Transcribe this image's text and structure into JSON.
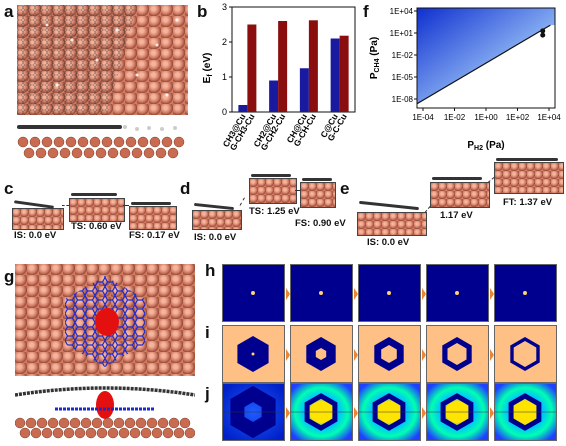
{
  "panels": {
    "a": "a",
    "b": "b",
    "c": "c",
    "d": "d",
    "e": "e",
    "f": "f",
    "g": "g",
    "h": "h",
    "i": "i",
    "j": "j"
  },
  "b": {
    "ylabel": "E",
    "ylabel_sub": "f",
    "ylabel_unit": " (eV)",
    "yticks": [
      "0",
      "1",
      "2",
      "3"
    ]
  },
  "f": {
    "ylabel": "P",
    "ylabel_sub": "CH4",
    "ylabel_unit": " (Pa)",
    "xlabel": "P",
    "xlabel_sub": "H2",
    "xlabel_unit": " (Pa)",
    "yticks": [
      "1E+04",
      "1E+01",
      "1E-02",
      "1E-05",
      "1E-08"
    ],
    "xticks": [
      "1E-04",
      "1E-02",
      "1E+00",
      "1E+02",
      "1E+04"
    ]
  },
  "states": {
    "c_is": "IS: 0.0 eV",
    "c_ts": "TS: 0.60 eV",
    "c_fs": "FS: 0.17 eV",
    "d_is": "IS: 0.0 eV",
    "d_ts": "TS: 1.25 eV",
    "d_fs": "FS: 0.90 eV",
    "e_is": "IS: 0.0 eV",
    "e_mid": "1.17 eV",
    "e_ft": "FT: 1.37 eV"
  },
  "chart_data": {
    "type": "bar",
    "categories": [
      "CH3@Cu",
      "G-CH3-Cu",
      "CH2@Cu",
      "G-CH2-Cu",
      "CH@Cu",
      "G-CH-Cu",
      "C@Cu",
      "G-C-Cu"
    ],
    "values": [
      0.2,
      2.5,
      0.9,
      2.6,
      1.25,
      2.62,
      2.1,
      2.18
    ],
    "colors": [
      "#1a1aa0",
      "#8b0e0e",
      "#1a1aa0",
      "#8b0e0e",
      "#1a1aa0",
      "#8b0e0e",
      "#1a1aa0",
      "#8b0e0e"
    ],
    "ylim": [
      0,
      3
    ],
    "xlabel": "",
    "ylabel": "Ef (eV)"
  },
  "f_chart": {
    "type": "line",
    "x_log_range": [
      -4,
      5
    ],
    "y_log_range": [
      -10,
      4
    ],
    "line": [
      [
        -4,
        -9.4
      ],
      [
        4.7,
        1.6
      ]
    ],
    "points": [
      [
        4.2,
        0.8
      ],
      [
        4.2,
        0.2
      ]
    ]
  }
}
